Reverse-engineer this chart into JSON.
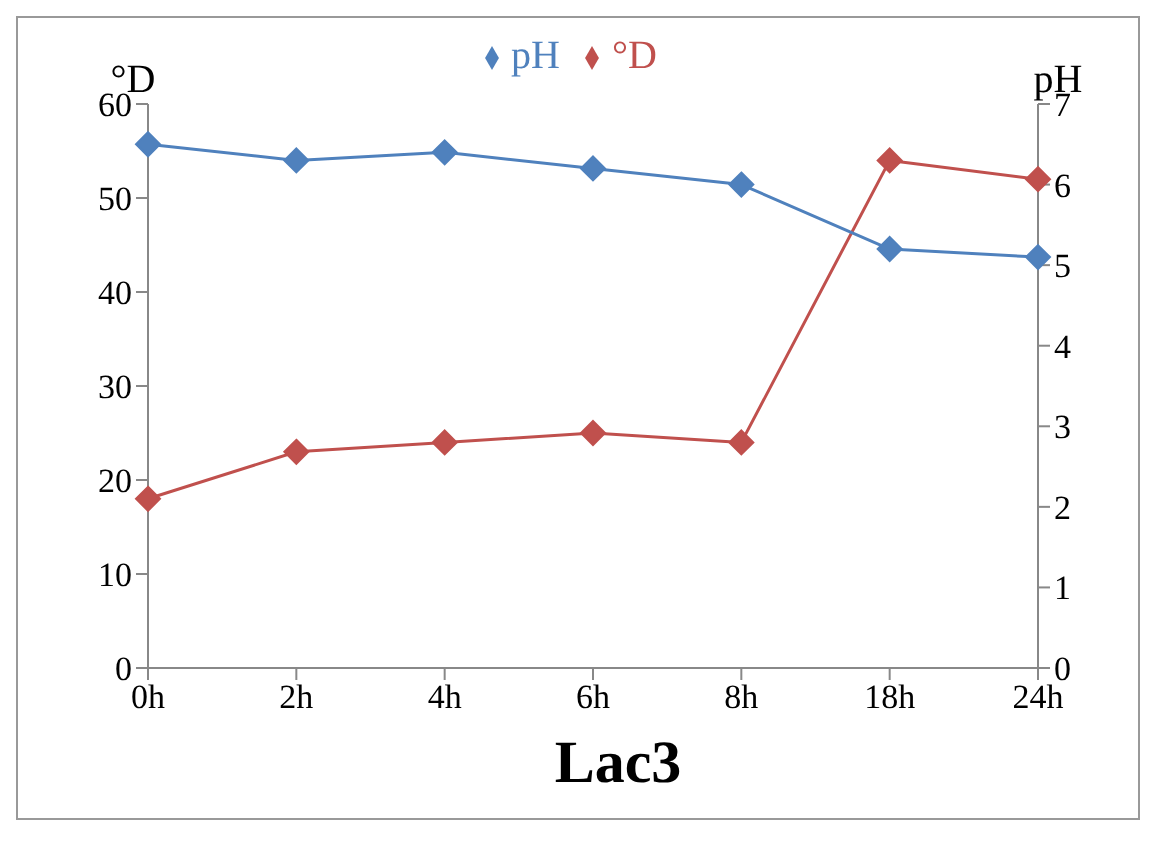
{
  "chart_data": {
    "type": "line",
    "title": "Lac3",
    "ylabel": "°D",
    "y2label": "pH",
    "categories": [
      "0h",
      "2h",
      "4h",
      "6h",
      "8h",
      "18h",
      "24h"
    ],
    "series": [
      {
        "name": "°D",
        "color": "#c0504d",
        "values": [
          18,
          23,
          24,
          25,
          24,
          54,
          52
        ]
      },
      {
        "name": "pH",
        "color": "#4f81bd",
        "axis": "y2",
        "values": [
          6.5,
          6.3,
          6.4,
          6.2,
          6.0,
          5.2,
          5.1
        ]
      }
    ],
    "ylim": [
      0,
      60
    ],
    "yticks": [
      0,
      10,
      20,
      30,
      40,
      50,
      60
    ],
    "y2lim": [
      0,
      7
    ],
    "y2ticks": [
      0,
      1,
      2,
      3,
      4,
      5,
      6,
      7
    ],
    "grid": false,
    "legend": "top",
    "marker": "diamond",
    "line_style": "solid"
  }
}
